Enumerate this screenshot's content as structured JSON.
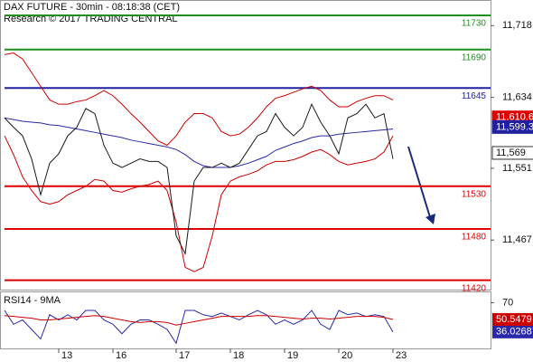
{
  "chart_data": [
    {
      "type": "line",
      "title": "DAX FUTURE - 30min - 08:18:38 (CET)",
      "subtitle": "Research © 2017 TRADING CENTRAL",
      "categories": [
        null,
        null,
        null,
        null,
        null,
        null,
        "13",
        null,
        null,
        null,
        null,
        null,
        "16",
        null,
        null,
        null,
        null,
        null,
        null,
        "17",
        null,
        null,
        null,
        null,
        null,
        "18",
        null,
        null,
        null,
        null,
        null,
        "19",
        null,
        null,
        null,
        null,
        null,
        "20",
        null,
        null,
        null,
        null,
        null,
        "23"
      ],
      "series": [
        {
          "color": "#cc0000",
          "values": [
            11684,
            11686,
            11679,
            11663,
            11647,
            11631,
            11626,
            11626,
            11629,
            11631,
            11636,
            11642,
            11636,
            11626,
            11615,
            11605,
            11594,
            11583,
            11578,
            11589,
            11605,
            11615,
            11615,
            11610,
            11594,
            11589,
            11591,
            11599,
            11610,
            11623,
            11633,
            11636,
            11640,
            11644,
            11647,
            11642,
            11631,
            11623,
            11623,
            11629,
            11633,
            11636,
            11636,
            11631
          ]
        },
        {
          "color": "#cc0000",
          "values": [
            11589,
            11567,
            11541,
            11525,
            11512,
            11509,
            11512,
            11520,
            11525,
            11530,
            11538,
            11536,
            11525,
            11523,
            11527,
            11530,
            11532,
            11536,
            11525,
            11488,
            11435,
            11430,
            11435,
            11472,
            11520,
            11536,
            11541,
            11544,
            11548,
            11555,
            11559,
            11559,
            11561,
            11565,
            11570,
            11573,
            11567,
            11559,
            11555,
            11557,
            11559,
            11562,
            11570,
            11589
          ]
        },
        {
          "color": "#2a2aa8",
          "values": [
            11610,
            11608,
            11606,
            11605,
            11604,
            11602,
            11601,
            11599,
            11597,
            11595,
            11593,
            11591,
            11589,
            11587,
            11584,
            11582,
            11580,
            11578,
            11576,
            11573,
            11567,
            11559,
            11554,
            11552,
            11552,
            11552,
            11554,
            11557,
            11561,
            11565,
            11572,
            11576,
            11580,
            11583,
            11587,
            11589,
            11589,
            11591,
            11592,
            11593,
            11594,
            11595,
            11596,
            11597
          ]
        },
        {
          "color": "#1a1a1a",
          "values": [
            11610,
            11599,
            11589,
            11562,
            11520,
            11557,
            11568,
            11589,
            11599,
            11621,
            11615,
            11578,
            11557,
            11552,
            11557,
            11562,
            11559,
            11559,
            11552,
            11472,
            11451,
            11536,
            11552,
            11552,
            11557,
            11552,
            11557,
            11573,
            11589,
            11594,
            11615,
            11599,
            11589,
            11599,
            11626,
            11605,
            11589,
            11568,
            11610,
            11615,
            11626,
            11610,
            11615,
            11562
          ]
        }
      ],
      "levels": [
        {
          "value": 11730,
          "color": "#1f8f1f"
        },
        {
          "value": 11690,
          "color": "#1f8f1f"
        },
        {
          "value": 11645,
          "color": "#2020a0"
        },
        {
          "value": 11530,
          "color": "#e00000"
        },
        {
          "value": 11480,
          "color": "#e00000"
        },
        {
          "value": 11420,
          "color": "#e00000"
        }
      ],
      "tags": [
        {
          "value": 11610.6,
          "label": "11,610.6",
          "color": "#e00000"
        },
        {
          "value": 11599.3,
          "label": "11,599.3",
          "color": "#2020a0"
        },
        {
          "value": 11569,
          "label": "11,569",
          "color": "#ffffff"
        }
      ],
      "ylim": [
        11409,
        11748
      ],
      "yticks": [
        {
          "value": 11718,
          "label": "11,718"
        },
        {
          "value": 11634,
          "label": "11,634"
        },
        {
          "value": 11551,
          "label": "11,551"
        },
        {
          "value": 11467,
          "label": "11,467"
        }
      ]
    },
    {
      "type": "line",
      "title": "RSI14 - 9MA",
      "series": [
        {
          "color": "#2a2aa8",
          "values": [
            61,
            45,
            50,
            39,
            28,
            56,
            50,
            56,
            50,
            61,
            61,
            50,
            45,
            34,
            45,
            50,
            50,
            45,
            39,
            23,
            61,
            61,
            56,
            54,
            58,
            54,
            50,
            56,
            61,
            56,
            45,
            50,
            45,
            50,
            61,
            45,
            39,
            61,
            56,
            58,
            54,
            56,
            54,
            36.0268
          ]
        },
        {
          "color": "#cc0000",
          "values": [
            55,
            54,
            53,
            52,
            50,
            50,
            51,
            52,
            53,
            54,
            55,
            54,
            52,
            50,
            48,
            47,
            48,
            48,
            47,
            44,
            46,
            48,
            50,
            52,
            54,
            54,
            54,
            54,
            55,
            55,
            54,
            53,
            52,
            51,
            52,
            52,
            51,
            52,
            53,
            54,
            54,
            54,
            53,
            50.5479
          ]
        }
      ],
      "ylim": [
        17,
        83
      ],
      "yticks": [
        70
      ]
    }
  ]
}
